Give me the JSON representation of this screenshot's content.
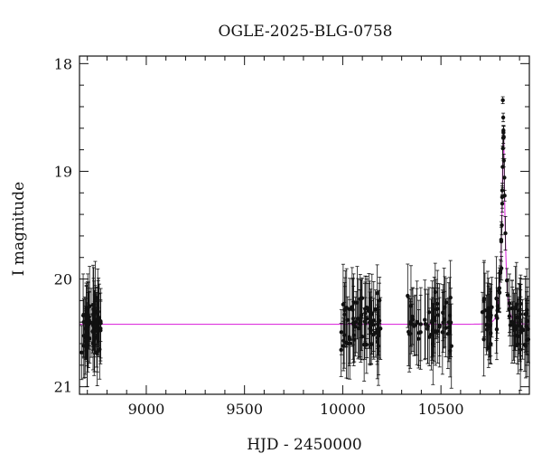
{
  "chart_data": {
    "type": "scatter",
    "title": "OGLE-2025-BLG-0758",
    "xlabel": "HJD - 2450000",
    "ylabel": "I magnitude",
    "xlim": [
      8660,
      10950
    ],
    "ylim": [
      21.07,
      17.93
    ],
    "y_inverted": true,
    "x_ticks": [
      9000,
      9500,
      10000,
      10500
    ],
    "y_ticks": [
      18,
      19,
      20,
      21
    ],
    "grid": false,
    "colors": {
      "points": "#111111",
      "model": "#dd33dd",
      "axes": "#111111"
    },
    "model": {
      "name": "",
      "baseline_mag": 20.42,
      "peak_time": 10818,
      "peak_mag": 18.62,
      "u0": 0.19,
      "tE": 21
    },
    "observation_seasons": [
      {
        "start": 8670,
        "end": 8770,
        "approx_points": 60
      },
      {
        "start": 9990,
        "end": 10200,
        "approx_points": 75
      },
      {
        "start": 10330,
        "end": 10560,
        "approx_points": 60
      },
      {
        "start": 10710,
        "end": 10945,
        "approx_points": 90
      }
    ],
    "highlighted_points": [
      {
        "x": 10815,
        "y": 18.34
      },
      {
        "x": 10817,
        "y": 18.5
      },
      {
        "x": 10818,
        "y": 18.62
      },
      {
        "x": 10820,
        "y": 18.9
      },
      {
        "x": 10812,
        "y": 19.3
      },
      {
        "x": 10810,
        "y": 19.5
      },
      {
        "x": 10808,
        "y": 19.9
      }
    ]
  }
}
